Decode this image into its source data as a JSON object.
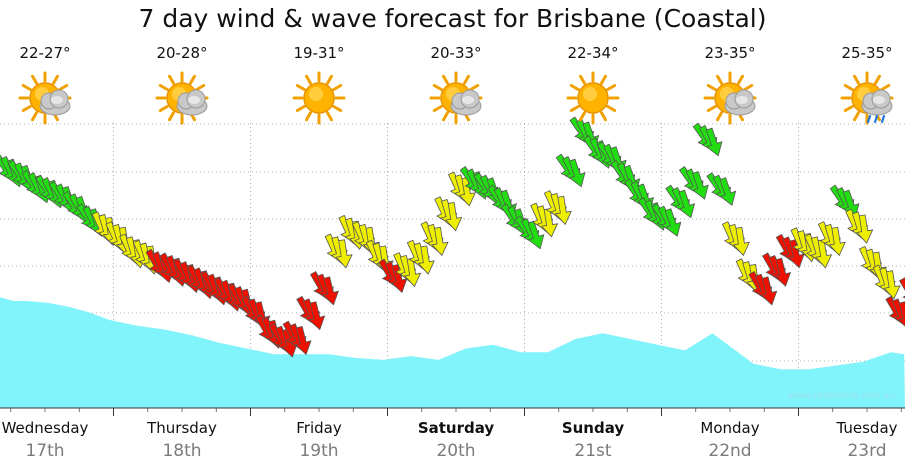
{
  "title": "7 day wind & wave forecast for Brisbane (Coastal)",
  "watermark": "www.seabreeze.com.au",
  "colors": {
    "wave_fill": "#80f3fb",
    "arrow_green": "#22dd11",
    "arrow_yellow": "#eeee00",
    "arrow_red": "#ee1100",
    "grid": "#999999"
  },
  "days": [
    {
      "name": "Wednesday",
      "date": "17th",
      "temp": "22-27°",
      "icon": "partly-cloudy-icon",
      "bold": false
    },
    {
      "name": "Thursday",
      "date": "18th",
      "temp": "20-28°",
      "icon": "partly-cloudy-icon",
      "bold": false
    },
    {
      "name": "Friday",
      "date": "19th",
      "temp": "19-31°",
      "icon": "sunny-icon",
      "bold": false
    },
    {
      "name": "Saturday",
      "date": "20th",
      "temp": "20-33°",
      "icon": "partly-cloudy-icon",
      "bold": true
    },
    {
      "name": "Sunday",
      "date": "21st",
      "temp": "22-34°",
      "icon": "sunny-icon",
      "bold": true
    },
    {
      "name": "Monday",
      "date": "22nd",
      "temp": "23-35°",
      "icon": "partly-cloudy-icon",
      "bold": false
    },
    {
      "name": "Tuesday",
      "date": "23rd",
      "temp": "25-35°",
      "icon": "storm-icon",
      "bold": false
    }
  ],
  "chart_data": {
    "type": "area",
    "title": "7 day wind & wave forecast for Brisbane (Coastal)",
    "categories": [
      "Wednesday 17th",
      "Thursday 18th",
      "Friday 19th",
      "Saturday 20th",
      "Sunday 21st",
      "Monday 22nd",
      "Tuesday 23rd"
    ],
    "grid": true,
    "wave": {
      "t": [
        0,
        0.1,
        0.2,
        0.35,
        0.5,
        0.65,
        0.8,
        1.0,
        1.2,
        1.4,
        1.6,
        1.8,
        2.0,
        2.2,
        2.4,
        2.6,
        2.8,
        3.0,
        3.2,
        3.4,
        3.6,
        3.8,
        4.0,
        4.2,
        4.4,
        4.6,
        4.8,
        5.0,
        5.2,
        5.35,
        5.5,
        5.7,
        5.9,
        6.1,
        6.3,
        6.5,
        6.6
      ],
      "values": [
        0.32,
        0.3,
        0.3,
        0.29,
        0.27,
        0.24,
        0.2,
        0.17,
        0.15,
        0.12,
        0.08,
        0.05,
        0.02,
        0.02,
        0.02,
        0.0,
        -0.01,
        0.01,
        -0.01,
        0.05,
        0.07,
        0.03,
        0.03,
        0.1,
        0.13,
        0.1,
        0.07,
        0.04,
        0.13,
        0.05,
        -0.03,
        -0.06,
        -0.06,
        -0.04,
        -0.02,
        0.03,
        0.02
      ]
    },
    "wind": {
      "t": [
        0.0,
        0.1,
        0.2,
        0.3,
        0.4,
        0.5,
        0.6,
        0.7,
        0.8,
        0.9,
        1.0,
        1.1,
        1.2,
        1.3,
        1.4,
        1.5,
        1.6,
        1.7,
        1.8,
        1.9,
        2.0,
        2.1,
        2.2,
        2.3,
        2.4,
        2.5,
        2.6,
        2.7,
        2.8,
        2.9,
        3.0,
        3.1,
        3.2,
        3.3,
        3.4,
        3.5,
        3.6,
        3.7,
        3.8,
        3.9,
        4.0,
        4.1,
        4.2,
        4.3,
        4.4,
        4.5,
        4.6,
        4.7,
        4.8,
        4.9,
        5.0,
        5.1,
        5.2,
        5.3,
        5.4,
        5.5,
        5.6,
        5.7,
        5.8,
        5.9,
        6.0,
        6.1,
        6.2,
        6.3,
        6.4,
        6.5,
        6.6
      ],
      "speed": [
        16.5,
        16.0,
        15.2,
        14.8,
        14.3,
        13.5,
        12.5,
        11.8,
        11.0,
        10.0,
        9.5,
        8.8,
        8.5,
        8.0,
        7.5,
        7.0,
        6.5,
        6.0,
        5.0,
        3.5,
        2.8,
        3.0,
        5.0,
        7.0,
        10.0,
        11.5,
        11.0,
        9.5,
        8.0,
        8.5,
        9.5,
        11.0,
        13.0,
        15.0,
        15.5,
        15.0,
        14.0,
        12.5,
        11.5,
        12.5,
        13.5,
        16.5,
        19.5,
        18.0,
        17.5,
        16.0,
        14.5,
        13.0,
        12.5,
        14.0,
        15.5,
        19.0,
        15.0,
        11.0,
        8.0,
        7.0,
        8.5,
        10.0,
        10.5,
        10.0,
        11.0,
        14.0,
        12.0,
        9.0,
        7.5,
        5.0,
        6.5
      ],
      "color": [
        "green",
        "green",
        "green",
        "green",
        "green",
        "green",
        "green",
        "yellow",
        "yellow",
        "yellow",
        "yellow",
        "red",
        "red",
        "red",
        "red",
        "red",
        "red",
        "red",
        "red",
        "red",
        "red",
        "red",
        "red",
        "red",
        "yellow",
        "yellow",
        "yellow",
        "yellow",
        "red",
        "yellow",
        "yellow",
        "yellow",
        "yellow",
        "yellow",
        "green",
        "green",
        "green",
        "green",
        "green",
        "yellow",
        "yellow",
        "green",
        "green",
        "green",
        "green",
        "green",
        "green",
        "green",
        "green",
        "green",
        "green",
        "green",
        "green",
        "yellow",
        "yellow",
        "red",
        "red",
        "red",
        "yellow",
        "yellow",
        "yellow",
        "green",
        "yellow",
        "yellow",
        "yellow",
        "red",
        "red"
      ]
    }
  }
}
